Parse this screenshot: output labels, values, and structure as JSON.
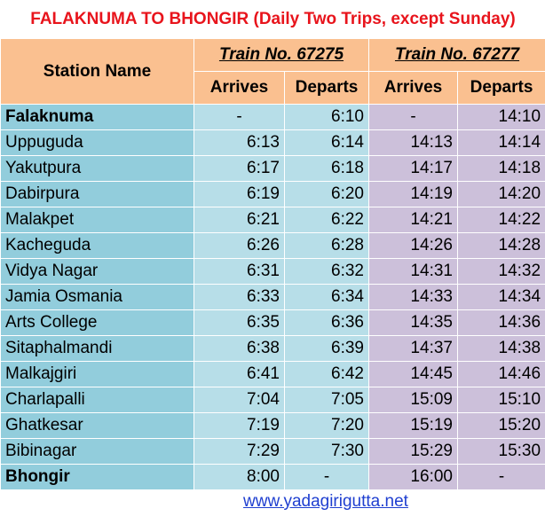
{
  "header": {
    "title": "FALAKNUMA TO BHONGIR (Daily Two Trips, except Sunday)"
  },
  "table": {
    "station_header": "Station Name",
    "trains": [
      {
        "name": "Train No. 67275",
        "arrives": "Arrives",
        "departs": "Departs"
      },
      {
        "name": "Train No. 67277",
        "arrives": "Arrives",
        "departs": "Departs"
      }
    ],
    "rows": [
      [
        "Falaknuma",
        "-",
        "6:10",
        "-",
        "14:10"
      ],
      [
        "Uppuguda",
        "6:13",
        "6:14",
        "14:13",
        "14:14"
      ],
      [
        "Yakutpura",
        "6:17",
        "6:18",
        "14:17",
        "14:18"
      ],
      [
        "Dabirpura",
        "6:19",
        "6:20",
        "14:19",
        "14:20"
      ],
      [
        "Malakpet",
        "6:21",
        "6:22",
        "14:21",
        "14:22"
      ],
      [
        "Kacheguda",
        "6:26",
        "6:28",
        "14:26",
        "14:28"
      ],
      [
        "Vidya Nagar",
        "6:31",
        "6:32",
        "14:31",
        "14:32"
      ],
      [
        "Jamia Osmania",
        "6:33",
        "6:34",
        "14:33",
        "14:34"
      ],
      [
        "Arts College",
        "6:35",
        "6:36",
        "14:35",
        "14:36"
      ],
      [
        "Sitaphalmandi",
        "6:38",
        "6:39",
        "14:37",
        "14:38"
      ],
      [
        "Malkajgiri",
        "6:41",
        "6:42",
        "14:45",
        "14:46"
      ],
      [
        "Charlapalli",
        "7:04",
        "7:05",
        "15:09",
        "15:10"
      ],
      [
        "Ghatkesar",
        "7:19",
        "7:20",
        "15:19",
        "15:20"
      ],
      [
        "Bibinagar",
        "7:29",
        "7:30",
        "15:29",
        "15:30"
      ],
      [
        "Bhongir",
        "8:00",
        "-",
        "16:00",
        "-"
      ]
    ]
  },
  "footer": {
    "link": "www.yadagirigutta.net"
  }
}
